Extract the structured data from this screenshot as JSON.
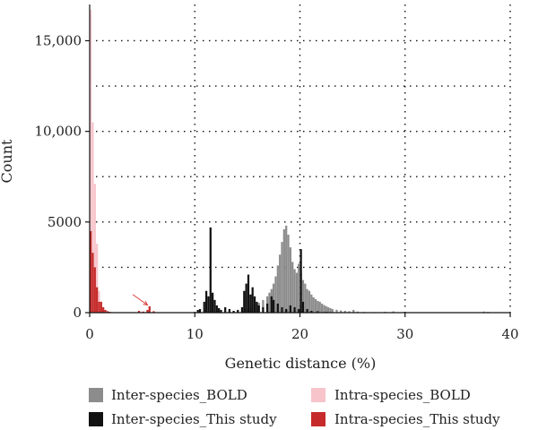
{
  "chart_data": {
    "type": "bar",
    "xlabel": "Genetic distance (%)",
    "ylabel": "Count",
    "xlim": [
      0,
      40
    ],
    "ylim": [
      0,
      17000
    ],
    "bin_width": 0.2,
    "grid": true,
    "legend_position": "bottom",
    "x_ticks": [
      {
        "value": 0,
        "label": "0"
      },
      {
        "value": 10,
        "label": "10"
      },
      {
        "value": 20,
        "label": "20"
      },
      {
        "value": 30,
        "label": "30"
      },
      {
        "value": 40,
        "label": "40"
      }
    ],
    "y_ticks": [
      {
        "value": 0,
        "label": "0"
      },
      {
        "value": 5000,
        "label": "5000"
      },
      {
        "value": 10000,
        "label": "10,000"
      },
      {
        "value": 15000,
        "label": "15,000"
      }
    ],
    "series": [
      {
        "name": "Inter-species_BOLD",
        "color": "#8c8c8c",
        "points": [
          [
            13.6,
            40
          ],
          [
            14.0,
            80
          ],
          [
            14.4,
            120
          ],
          [
            14.8,
            180
          ],
          [
            15.2,
            300
          ],
          [
            15.6,
            450
          ],
          [
            16.0,
            550
          ],
          [
            16.4,
            700
          ],
          [
            16.8,
            900
          ],
          [
            17.0,
            1100
          ],
          [
            17.2,
            1300
          ],
          [
            17.4,
            1600
          ],
          [
            17.6,
            2000
          ],
          [
            17.8,
            2600
          ],
          [
            18.0,
            3200
          ],
          [
            18.2,
            3900
          ],
          [
            18.4,
            4600
          ],
          [
            18.6,
            4800
          ],
          [
            18.8,
            4300
          ],
          [
            19.0,
            3600
          ],
          [
            19.2,
            2800
          ],
          [
            19.4,
            2400
          ],
          [
            19.6,
            2200
          ],
          [
            19.8,
            2700
          ],
          [
            20.0,
            2200
          ],
          [
            20.2,
            1800
          ],
          [
            20.4,
            1600
          ],
          [
            20.6,
            1300
          ],
          [
            20.8,
            1200
          ],
          [
            21.0,
            1000
          ],
          [
            21.2,
            850
          ],
          [
            21.4,
            750
          ],
          [
            21.6,
            650
          ],
          [
            21.8,
            600
          ],
          [
            22.0,
            500
          ],
          [
            22.2,
            420
          ],
          [
            22.4,
            360
          ],
          [
            22.6,
            300
          ],
          [
            22.8,
            250
          ],
          [
            23.0,
            200
          ],
          [
            23.4,
            160
          ],
          [
            23.8,
            120
          ],
          [
            24.2,
            100
          ],
          [
            24.6,
            80
          ],
          [
            25.0,
            150
          ],
          [
            25.4,
            60
          ],
          [
            26.0,
            40
          ],
          [
            27.0,
            30
          ],
          [
            28.0,
            50
          ],
          [
            28.8,
            70
          ],
          [
            29.8,
            30
          ],
          [
            32.0,
            20
          ],
          [
            36.0,
            20
          ],
          [
            37.4,
            60
          ],
          [
            37.8,
            40
          ]
        ]
      },
      {
        "name": "Inter-species_This study",
        "color": "#111111",
        "points": [
          [
            10.2,
            150
          ],
          [
            10.4,
            200
          ],
          [
            10.8,
            600
          ],
          [
            11.0,
            1200
          ],
          [
            11.2,
            900
          ],
          [
            11.4,
            4700
          ],
          [
            11.6,
            1100
          ],
          [
            11.8,
            700
          ],
          [
            12.0,
            400
          ],
          [
            12.2,
            250
          ],
          [
            12.4,
            150
          ],
          [
            12.8,
            300
          ],
          [
            13.2,
            200
          ],
          [
            13.6,
            100
          ],
          [
            14.0,
            150
          ],
          [
            14.4,
            300
          ],
          [
            14.6,
            1200
          ],
          [
            14.8,
            1600
          ],
          [
            15.0,
            2100
          ],
          [
            15.2,
            1000
          ],
          [
            15.4,
            1400
          ],
          [
            15.6,
            900
          ],
          [
            15.8,
            600
          ],
          [
            16.0,
            400
          ],
          [
            16.4,
            300
          ],
          [
            16.8,
            500
          ],
          [
            17.2,
            900
          ],
          [
            17.4,
            700
          ],
          [
            17.8,
            500
          ],
          [
            18.2,
            300
          ],
          [
            18.6,
            200
          ],
          [
            19.0,
            400
          ],
          [
            19.4,
            300
          ],
          [
            19.8,
            200
          ],
          [
            20.0,
            3500
          ],
          [
            20.2,
            600
          ],
          [
            20.6,
            200
          ],
          [
            21.0,
            100
          ],
          [
            21.6,
            80
          ],
          [
            22.4,
            40
          ]
        ]
      },
      {
        "name": "Intra-species_BOLD",
        "color": "#f7c4cb",
        "points": [
          [
            0.0,
            16700
          ],
          [
            0.2,
            10500
          ],
          [
            0.4,
            7100
          ],
          [
            0.6,
            3800
          ],
          [
            0.8,
            1200
          ],
          [
            1.0,
            400
          ],
          [
            1.2,
            150
          ],
          [
            1.4,
            80
          ],
          [
            1.6,
            50
          ],
          [
            1.8,
            30
          ]
        ]
      },
      {
        "name": "Intra-species_This study",
        "color": "#c62a2a",
        "points": [
          [
            0.0,
            4500
          ],
          [
            0.2,
            3300
          ],
          [
            0.4,
            2500
          ],
          [
            0.6,
            1400
          ],
          [
            0.8,
            600
          ],
          [
            1.0,
            600
          ],
          [
            1.2,
            300
          ],
          [
            1.4,
            150
          ],
          [
            1.6,
            80
          ],
          [
            1.8,
            50
          ],
          [
            4.6,
            100
          ],
          [
            5.0,
            60
          ],
          [
            5.4,
            150
          ],
          [
            5.6,
            350
          ],
          [
            6.0,
            80
          ]
        ]
      }
    ],
    "annotation": {
      "type": "arrow",
      "color": "#d94040",
      "x_from": 4.1,
      "y_from": 1000,
      "x_to": 5.5,
      "y_to": 420
    }
  }
}
